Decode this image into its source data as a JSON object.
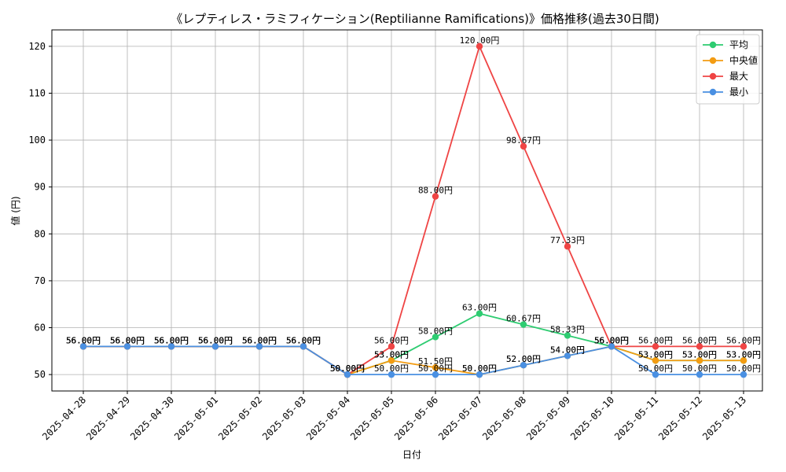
{
  "chart_data": {
    "type": "line",
    "title": "《レプティレス・ラミフィケーション(Reptilianne Ramifications)》価格推移(過去30日間)",
    "xlabel": "日付",
    "ylabel": "値 (円)",
    "categories": [
      "2025-04-28",
      "2025-04-29",
      "2025-04-30",
      "2025-05-01",
      "2025-05-02",
      "2025-05-03",
      "2025-05-04",
      "2025-05-05",
      "2025-05-06",
      "2025-05-07",
      "2025-05-08",
      "2025-05-09",
      "2025-05-10",
      "2025-05-11",
      "2025-05-12",
      "2025-05-13"
    ],
    "yticks": [
      50,
      60,
      70,
      80,
      90,
      100,
      110,
      120
    ],
    "ylim": [
      46.5,
      123.5
    ],
    "grid": true,
    "legend_position": "top-right",
    "label_suffix": "円",
    "series": [
      {
        "name": "平均",
        "color": "#2ecc71",
        "values": [
          56,
          56,
          56,
          56,
          56,
          56,
          50,
          53,
          58,
          63,
          60.67,
          58.33,
          56,
          53,
          53,
          53
        ]
      },
      {
        "name": "中央値",
        "color": "#f39c12",
        "values": [
          56,
          56,
          56,
          56,
          56,
          56,
          50,
          53,
          51.5,
          50,
          52,
          54,
          56,
          53,
          53,
          53
        ]
      },
      {
        "name": "最大",
        "color": "#ef4444",
        "values": [
          56,
          56,
          56,
          56,
          56,
          56,
          50,
          56,
          88,
          120,
          98.67,
          77.33,
          56,
          56,
          56,
          56
        ]
      },
      {
        "name": "最小",
        "color": "#4a90e2",
        "values": [
          56,
          56,
          56,
          56,
          56,
          56,
          50,
          50,
          50,
          50,
          52,
          54,
          56,
          50,
          50,
          50
        ]
      }
    ]
  }
}
